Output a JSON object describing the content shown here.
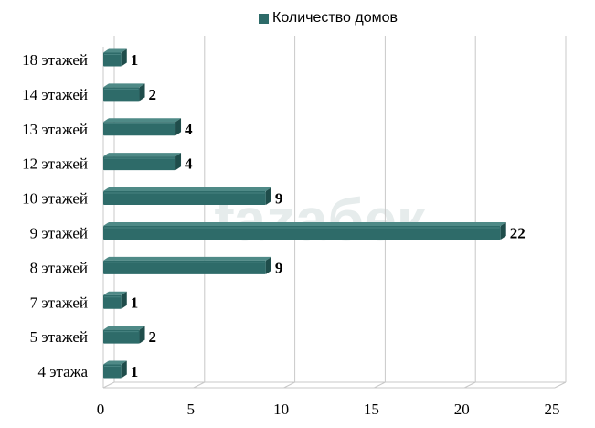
{
  "chart_data": {
    "type": "bar",
    "orientation": "horizontal",
    "categories": [
      "4 этажа",
      "5 этажей",
      "7 этажей",
      "8 этажей",
      "9 этажей",
      "10 этажей",
      "12 этажей",
      "13 этажей",
      "14 этажей",
      "18 этажей"
    ],
    "series": [
      {
        "name": "Количество домов",
        "values": [
          1,
          2,
          1,
          9,
          22,
          9,
          4,
          4,
          2,
          1
        ]
      }
    ],
    "xlim": [
      0,
      25
    ],
    "xticks": [
      0,
      5,
      10,
      15,
      20,
      25
    ],
    "grid": true,
    "legend_position": "top",
    "colors": {
      "bar_front": "#2e6b69",
      "bar_side": "#1f4d4b",
      "bar_top": "#4f8a87",
      "grid": "#c8c8c8"
    }
  },
  "watermark": "fazaбек"
}
